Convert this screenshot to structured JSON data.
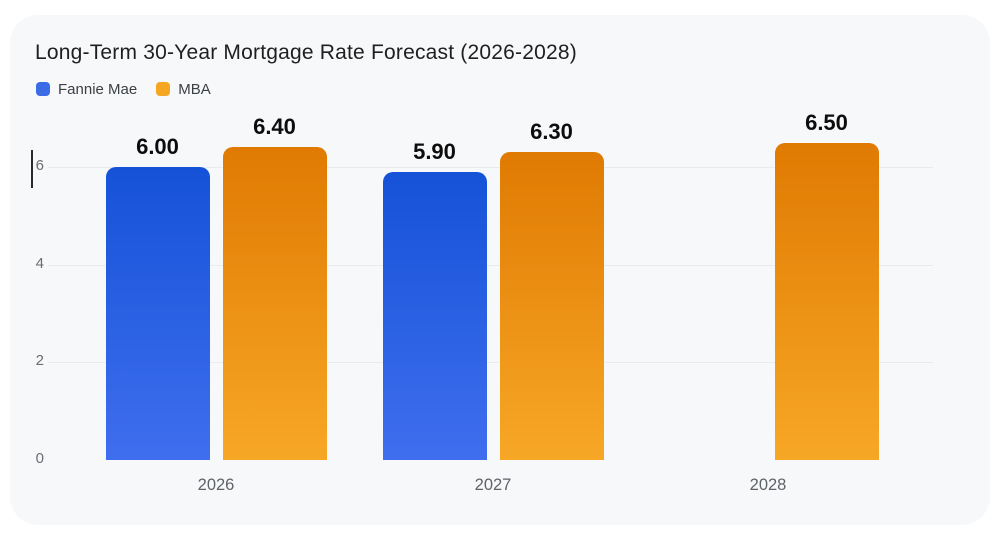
{
  "chart_data": {
    "type": "bar",
    "title": "Long-Term 30-Year Mortgage Rate Forecast (2026-2028)",
    "categories": [
      "2026",
      "2027",
      "2028"
    ],
    "series": [
      {
        "name": "Fannie Mae",
        "values": [
          6.0,
          5.9,
          null
        ],
        "legend_color": "#3b6ce6",
        "gradient_top": "#1552d8",
        "gradient_bottom": "#3f6eee"
      },
      {
        "name": "MBA",
        "values": [
          6.4,
          6.3,
          6.5
        ],
        "legend_color": "#f5a623",
        "gradient_top": "#e07a02",
        "gradient_bottom": "#f7a726"
      }
    ],
    "value_labels": [
      [
        "6.00",
        "5.90",
        null
      ],
      [
        "6.40",
        "6.30",
        "6.50"
      ]
    ],
    "xlabel": "",
    "ylabel": "",
    "yticks": [
      0,
      2,
      4,
      6
    ],
    "ylim": [
      0,
      6.5
    ],
    "grid": true,
    "legend_position": "top-left",
    "colors": {
      "page_background": "#ffffff",
      "card_background": "#f7f8fa",
      "gridline": "#e9ebee",
      "tick_label": "#6a6e72",
      "category_label": "#5f6368",
      "value_label": "#0d0d0d",
      "title": "#1f1f1f"
    }
  }
}
